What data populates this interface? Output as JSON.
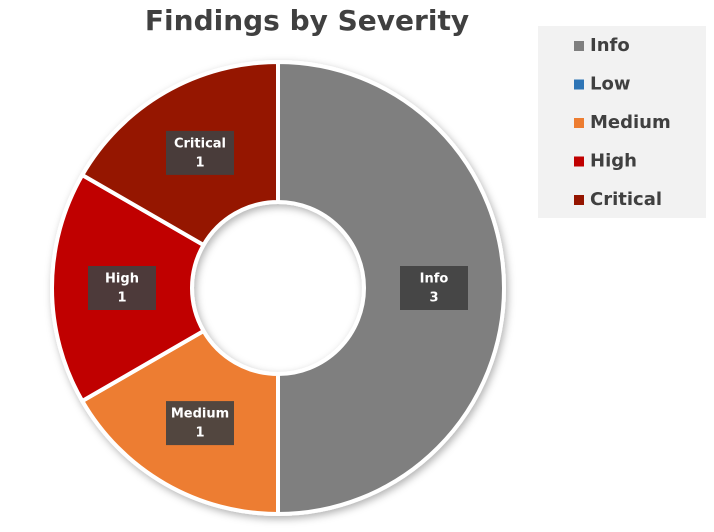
{
  "chart_data": {
    "type": "donut",
    "title": "Findings by Severity",
    "categories": [
      "Info",
      "Low",
      "Medium",
      "High",
      "Critical"
    ],
    "values": [
      3,
      0,
      1,
      1,
      1
    ],
    "colors": [
      "#7f7f7f",
      "#2e75b6",
      "#ed7d31",
      "#c00000",
      "#951500"
    ],
    "legend": "right"
  }
}
